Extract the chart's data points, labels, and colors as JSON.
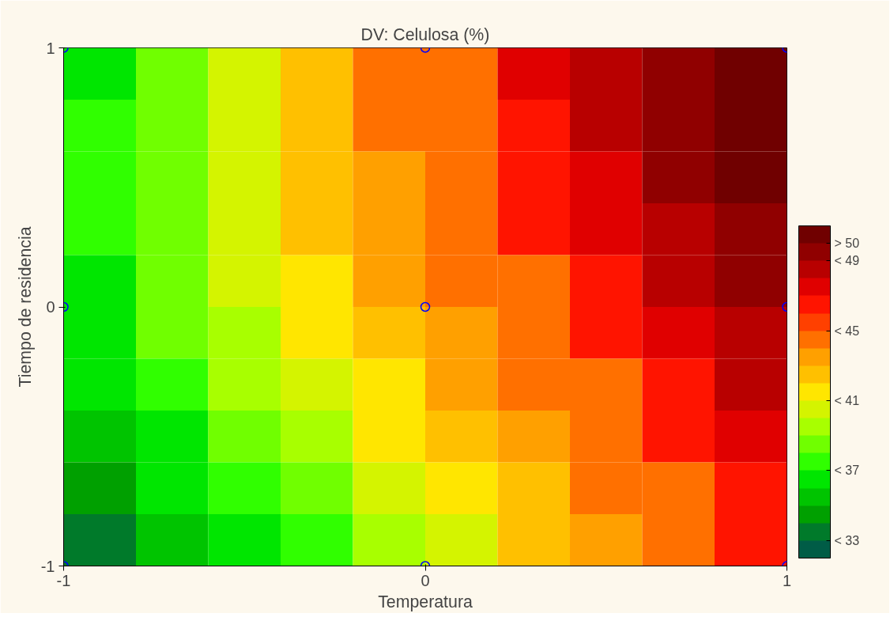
{
  "chart_data": {
    "type": "heatmap",
    "title": "DV: Celulosa (%)",
    "xlabel": "Temperatura",
    "ylabel": "Tiempo de residencia",
    "x": [
      -0.9,
      -0.7,
      -0.5,
      -0.3,
      -0.1,
      0.1,
      0.3,
      0.5,
      0.7,
      0.9
    ],
    "y": [
      0.9,
      0.7,
      0.5,
      0.3,
      0.1,
      -0.1,
      -0.3,
      -0.5,
      -0.7,
      -0.9
    ],
    "cells": [
      [
        36,
        38,
        40,
        42,
        44,
        45,
        47,
        48,
        49,
        50
      ],
      [
        37,
        38,
        40,
        42,
        44,
        45,
        46,
        48,
        49,
        50
      ],
      [
        37,
        38,
        40,
        42,
        43,
        45,
        46,
        47,
        49,
        50
      ],
      [
        37,
        38,
        40,
        42,
        43,
        44,
        46,
        47,
        48,
        49
      ],
      [
        36,
        38,
        40,
        41,
        43,
        44,
        45,
        46,
        48,
        49
      ],
      [
        36,
        38,
        39,
        41,
        42,
        43,
        45,
        46,
        47,
        48
      ],
      [
        36,
        37,
        39,
        40,
        41,
        43,
        44,
        45,
        46,
        48
      ],
      [
        35,
        36,
        38,
        39,
        41,
        42,
        43,
        45,
        46,
        47
      ],
      [
        34,
        36,
        37,
        38,
        40,
        41,
        42,
        44,
        45,
        46
      ],
      [
        33,
        35,
        36,
        37,
        39,
        40,
        42,
        43,
        44,
        46
      ]
    ],
    "colors": [
      "#005c46",
      "#007a2a",
      "#00a000",
      "#00c400",
      "#00e600",
      "#30ff00",
      "#70ff00",
      "#a8ff00",
      "#d4f400",
      "#ffe600",
      "#ffc000",
      "#ffa000",
      "#ff7000",
      "#ff4000",
      "#ff1400",
      "#e00000",
      "#b80000",
      "#900000",
      "#700000"
    ],
    "clim": [
      32,
      51
    ],
    "cticks": [
      {
        "value": 33,
        "label": "< 33"
      },
      {
        "value": 37,
        "label": "< 37"
      },
      {
        "value": 41,
        "label": "< 41"
      },
      {
        "value": 45,
        "label": "< 45"
      },
      {
        "value": 49,
        "label": "< 49"
      },
      {
        "value": 50,
        "label": "> 50"
      }
    ],
    "series": [
      {
        "type": "scatter",
        "x": [
          -1,
          -1,
          -1,
          0,
          0,
          0,
          1,
          1,
          1
        ],
        "values": [
          -1,
          0,
          1,
          -1,
          0,
          1,
          -1,
          0,
          1
        ],
        "color": "#0000ff"
      }
    ],
    "marker": "circle",
    "xlim": [
      -1,
      1
    ],
    "xticks": [
      -1,
      0,
      1
    ],
    "ylim": [
      -1,
      1
    ],
    "yticks": [
      -1,
      0,
      1
    ],
    "grid": false
  }
}
